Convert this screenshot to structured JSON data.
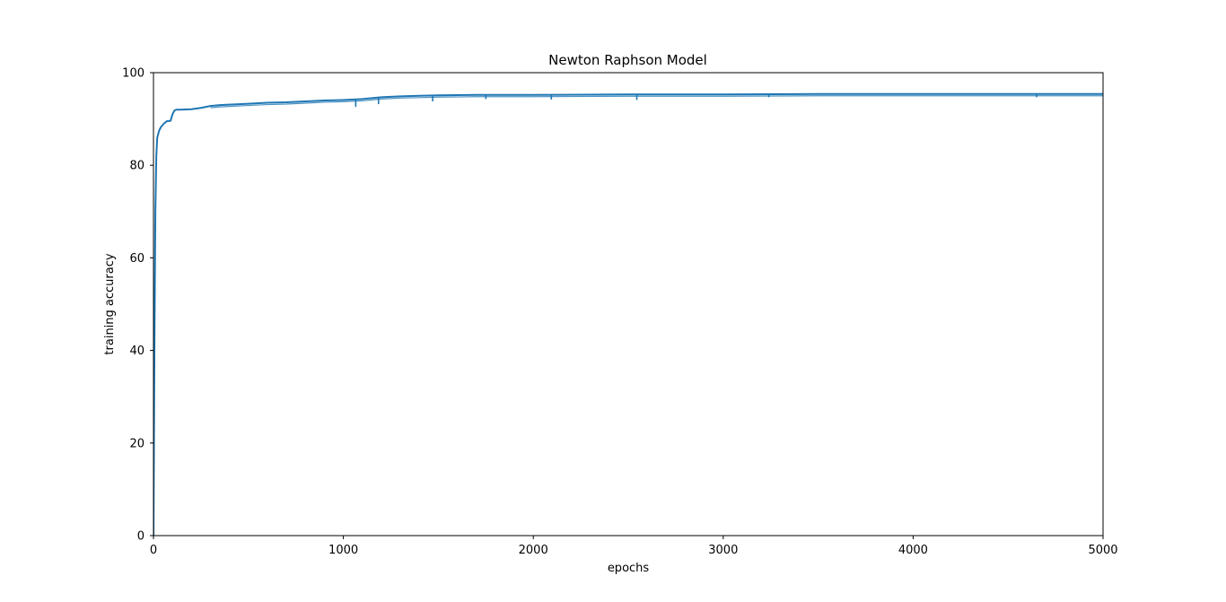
{
  "chart_data": {
    "type": "line",
    "title": "Newton Raphson Model",
    "xlabel": "epochs",
    "ylabel": "training accuracy",
    "xlim": [
      0,
      5000
    ],
    "ylim": [
      0,
      100
    ],
    "xticks": [
      0,
      1000,
      2000,
      3000,
      4000,
      5000
    ],
    "yticks": [
      0,
      20,
      40,
      60,
      80,
      100
    ],
    "grid": false,
    "color": "#1f77b4",
    "series": [
      {
        "x": [
          0,
          5,
          10,
          15,
          20,
          30,
          40,
          55,
          70,
          90,
          100,
          110,
          120,
          140,
          200,
          250,
          300,
          350,
          400,
          500,
          600,
          700,
          800,
          900,
          1000,
          1100,
          1150,
          1200,
          1300,
          1400,
          1500,
          1700,
          2000,
          2500,
          3000,
          3500,
          4000,
          4500,
          5000
        ],
        "y": [
          0,
          40,
          70,
          82,
          86,
          87.5,
          88.3,
          89.0,
          89.5,
          89.6,
          91.0,
          91.8,
          92.0,
          92.0,
          92.1,
          92.4,
          92.8,
          93.0,
          93.1,
          93.3,
          93.5,
          93.6,
          93.8,
          94.0,
          94.1,
          94.3,
          94.5,
          94.7,
          94.9,
          95.0,
          95.1,
          95.2,
          95.2,
          95.3,
          95.3,
          95.4,
          95.4,
          95.4,
          95.4
        ]
      }
    ],
    "dips": [
      {
        "x": 1065,
        "y": 92.6
      },
      {
        "x": 1185,
        "y": 93.2
      },
      {
        "x": 1470,
        "y": 93.8
      },
      {
        "x": 1750,
        "y": 94.3
      },
      {
        "x": 2095,
        "y": 94.2
      },
      {
        "x": 2545,
        "y": 94.1
      },
      {
        "x": 3240,
        "y": 94.7
      },
      {
        "x": 4650,
        "y": 94.7
      }
    ]
  }
}
